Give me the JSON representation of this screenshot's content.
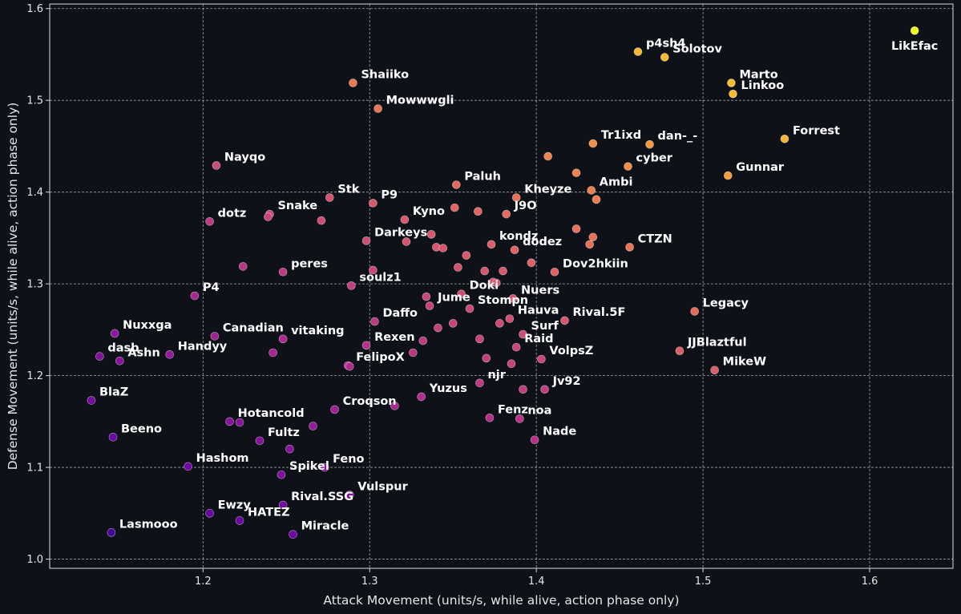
{
  "chart_data": {
    "type": "scatter",
    "title": "",
    "xlabel": "Attack Movement (units/s, while alive, action phase only)",
    "ylabel": "Defense Movement (units/s, while alive, action phase only)",
    "xlim": [
      1.108,
      1.65
    ],
    "ylim": [
      0.99,
      1.605
    ],
    "xticks": [
      "1.2",
      "1.3",
      "1.4",
      "1.5",
      "1.6"
    ],
    "yticks": [
      "1.0",
      "1.1",
      "1.2",
      "1.3",
      "1.4",
      "1.5",
      "1.6"
    ],
    "grid": true,
    "colormap": [
      "#0d0887",
      "#6a00a8",
      "#b12a90",
      "#e16462",
      "#fca636",
      "#f0f921"
    ],
    "background": "#0e1117",
    "points": [
      {
        "label": "LikEfac",
        "x": 1.627,
        "y": 1.576
      },
      {
        "label": "p4sh4",
        "x": 1.461,
        "y": 1.553
      },
      {
        "label": "Solotov",
        "x": 1.477,
        "y": 1.547
      },
      {
        "label": "Marto",
        "x": 1.517,
        "y": 1.519
      },
      {
        "label": "Linkoo",
        "x": 1.518,
        "y": 1.507
      },
      {
        "label": "Shaiiko",
        "x": 1.29,
        "y": 1.519
      },
      {
        "label": "Mowwwgli",
        "x": 1.305,
        "y": 1.491
      },
      {
        "label": "Forrest",
        "x": 1.549,
        "y": 1.458
      },
      {
        "label": "Tr1ixd",
        "x": 1.434,
        "y": 1.453
      },
      {
        "label": "dan-_-",
        "x": 1.468,
        "y": 1.452
      },
      {
        "label": "",
        "x": 1.407,
        "y": 1.439
      },
      {
        "label": "Nayqo",
        "x": 1.208,
        "y": 1.429
      },
      {
        "label": "cyber",
        "x": 1.455,
        "y": 1.428
      },
      {
        "label": "",
        "x": 1.424,
        "y": 1.421
      },
      {
        "label": "Gunnar",
        "x": 1.515,
        "y": 1.418
      },
      {
        "label": "Paluh",
        "x": 1.352,
        "y": 1.408
      },
      {
        "label": "Ambi",
        "x": 1.433,
        "y": 1.402
      },
      {
        "label": "Kheyze",
        "x": 1.388,
        "y": 1.394
      },
      {
        "label": "Stk",
        "x": 1.276,
        "y": 1.394
      },
      {
        "label": "",
        "x": 1.436,
        "y": 1.392
      },
      {
        "label": "P9",
        "x": 1.302,
        "y": 1.388
      },
      {
        "label": "",
        "x": 1.351,
        "y": 1.383
      },
      {
        "label": "",
        "x": 1.365,
        "y": 1.379
      },
      {
        "label": "J9O",
        "x": 1.382,
        "y": 1.376
      },
      {
        "label": "Snake",
        "x": 1.24,
        "y": 1.376
      },
      {
        "label": "",
        "x": 1.239,
        "y": 1.373
      },
      {
        "label": "Kyno",
        "x": 1.321,
        "y": 1.37
      },
      {
        "label": "",
        "x": 1.271,
        "y": 1.369
      },
      {
        "label": "dotz",
        "x": 1.204,
        "y": 1.368
      },
      {
        "label": "",
        "x": 1.424,
        "y": 1.36
      },
      {
        "label": "",
        "x": 1.337,
        "y": 1.354
      },
      {
        "label": "",
        "x": 1.434,
        "y": 1.351
      },
      {
        "label": "Darkeys",
        "x": 1.298,
        "y": 1.347
      },
      {
        "label": "",
        "x": 1.322,
        "y": 1.346
      },
      {
        "label": "kondz",
        "x": 1.373,
        "y": 1.343
      },
      {
        "label": "",
        "x": 1.432,
        "y": 1.343
      },
      {
        "label": "",
        "x": 1.34,
        "y": 1.34
      },
      {
        "label": "",
        "x": 1.344,
        "y": 1.339
      },
      {
        "label": "CTZN",
        "x": 1.456,
        "y": 1.34
      },
      {
        "label": "dodez",
        "x": 1.387,
        "y": 1.337
      },
      {
        "label": "",
        "x": 1.358,
        "y": 1.331
      },
      {
        "label": "",
        "x": 1.397,
        "y": 1.323
      },
      {
        "label": "",
        "x": 1.224,
        "y": 1.319
      },
      {
        "label": "",
        "x": 1.353,
        "y": 1.318
      },
      {
        "label": "",
        "x": 1.302,
        "y": 1.315
      },
      {
        "label": "",
        "x": 1.369,
        "y": 1.314
      },
      {
        "label": "",
        "x": 1.38,
        "y": 1.314
      },
      {
        "label": "Dov2hkiin",
        "x": 1.411,
        "y": 1.313
      },
      {
        "label": "peres",
        "x": 1.248,
        "y": 1.313
      },
      {
        "label": "",
        "x": 1.374,
        "y": 1.302
      },
      {
        "label": "",
        "x": 1.376,
        "y": 1.301
      },
      {
        "label": "soulz1",
        "x": 1.289,
        "y": 1.298
      },
      {
        "label": "Doki",
        "x": 1.355,
        "y": 1.289
      },
      {
        "label": "P4",
        "x": 1.195,
        "y": 1.287
      },
      {
        "label": "",
        "x": 1.334,
        "y": 1.286
      },
      {
        "label": "Nuers",
        "x": 1.386,
        "y": 1.284
      },
      {
        "label": "Jume",
        "x": 1.336,
        "y": 1.276
      },
      {
        "label": "Stompn",
        "x": 1.36,
        "y": 1.273
      },
      {
        "label": "Legacy",
        "x": 1.495,
        "y": 1.27
      },
      {
        "label": "Hauva",
        "x": 1.384,
        "y": 1.262
      },
      {
        "label": "Rival.5F",
        "x": 1.417,
        "y": 1.26
      },
      {
        "label": "Daffo",
        "x": 1.303,
        "y": 1.259
      },
      {
        "label": "",
        "x": 1.35,
        "y": 1.257
      },
      {
        "label": "",
        "x": 1.378,
        "y": 1.257
      },
      {
        "label": "",
        "x": 1.341,
        "y": 1.252
      },
      {
        "label": "Nuxxga",
        "x": 1.147,
        "y": 1.246
      },
      {
        "label": "Surf",
        "x": 1.392,
        "y": 1.245
      },
      {
        "label": "Canadian",
        "x": 1.207,
        "y": 1.243
      },
      {
        "label": "vitaking",
        "x": 1.248,
        "y": 1.24
      },
      {
        "label": "",
        "x": 1.366,
        "y": 1.24
      },
      {
        "label": "",
        "x": 1.332,
        "y": 1.238
      },
      {
        "label": "Rexen",
        "x": 1.298,
        "y": 1.233
      },
      {
        "label": "Raid",
        "x": 1.388,
        "y": 1.231
      },
      {
        "label": "JJBlaztful",
        "x": 1.486,
        "y": 1.227
      },
      {
        "label": "",
        "x": 1.242,
        "y": 1.225
      },
      {
        "label": "VolpsZ",
        "x": 1.403,
        "y": 1.218
      },
      {
        "label": "",
        "x": 1.326,
        "y": 1.225
      },
      {
        "label": "Handyy",
        "x": 1.18,
        "y": 1.223
      },
      {
        "label": "dasb",
        "x": 1.138,
        "y": 1.221
      },
      {
        "label": "Ashn",
        "x": 1.15,
        "y": 1.216
      },
      {
        "label": "",
        "x": 1.37,
        "y": 1.219
      },
      {
        "label": "",
        "x": 1.385,
        "y": 1.213
      },
      {
        "label": "FelipoX",
        "x": 1.287,
        "y": 1.211
      },
      {
        "label": "",
        "x": 1.288,
        "y": 1.21
      },
      {
        "label": "MikeW",
        "x": 1.507,
        "y": 1.206
      },
      {
        "label": "njr",
        "x": 1.366,
        "y": 1.192
      },
      {
        "label": "Jv92",
        "x": 1.405,
        "y": 1.185
      },
      {
        "label": "",
        "x": 1.392,
        "y": 1.185
      },
      {
        "label": "Yuzus",
        "x": 1.331,
        "y": 1.177
      },
      {
        "label": "BlaZ",
        "x": 1.133,
        "y": 1.173
      },
      {
        "label": "",
        "x": 1.315,
        "y": 1.167
      },
      {
        "label": "Croqson",
        "x": 1.279,
        "y": 1.163
      },
      {
        "label": "Fenz",
        "x": 1.372,
        "y": 1.154
      },
      {
        "label": "noa",
        "x": 1.39,
        "y": 1.153
      },
      {
        "label": "Hotancold",
        "x": 1.216,
        "y": 1.15
      },
      {
        "label": "",
        "x": 1.222,
        "y": 1.149
      },
      {
        "label": "",
        "x": 1.266,
        "y": 1.145
      },
      {
        "label": "Beeno",
        "x": 1.146,
        "y": 1.133
      },
      {
        "label": "Nade",
        "x": 1.399,
        "y": 1.13
      },
      {
        "label": "Fultz",
        "x": 1.234,
        "y": 1.129
      },
      {
        "label": "",
        "x": 1.252,
        "y": 1.12
      },
      {
        "label": "Hashom",
        "x": 1.191,
        "y": 1.101
      },
      {
        "label": "Feno",
        "x": 1.273,
        "y": 1.1
      },
      {
        "label": "Spikel",
        "x": 1.247,
        "y": 1.092
      },
      {
        "label": "Vulspur",
        "x": 1.288,
        "y": 1.07
      },
      {
        "label": "Rival.SSG",
        "x": 1.248,
        "y": 1.059
      },
      {
        "label": "Ewzy",
        "x": 1.204,
        "y": 1.05
      },
      {
        "label": "HATEZ",
        "x": 1.222,
        "y": 1.042
      },
      {
        "label": "Lasmooo",
        "x": 1.145,
        "y": 1.029
      },
      {
        "label": "Miracle",
        "x": 1.254,
        "y": 1.027
      }
    ]
  }
}
